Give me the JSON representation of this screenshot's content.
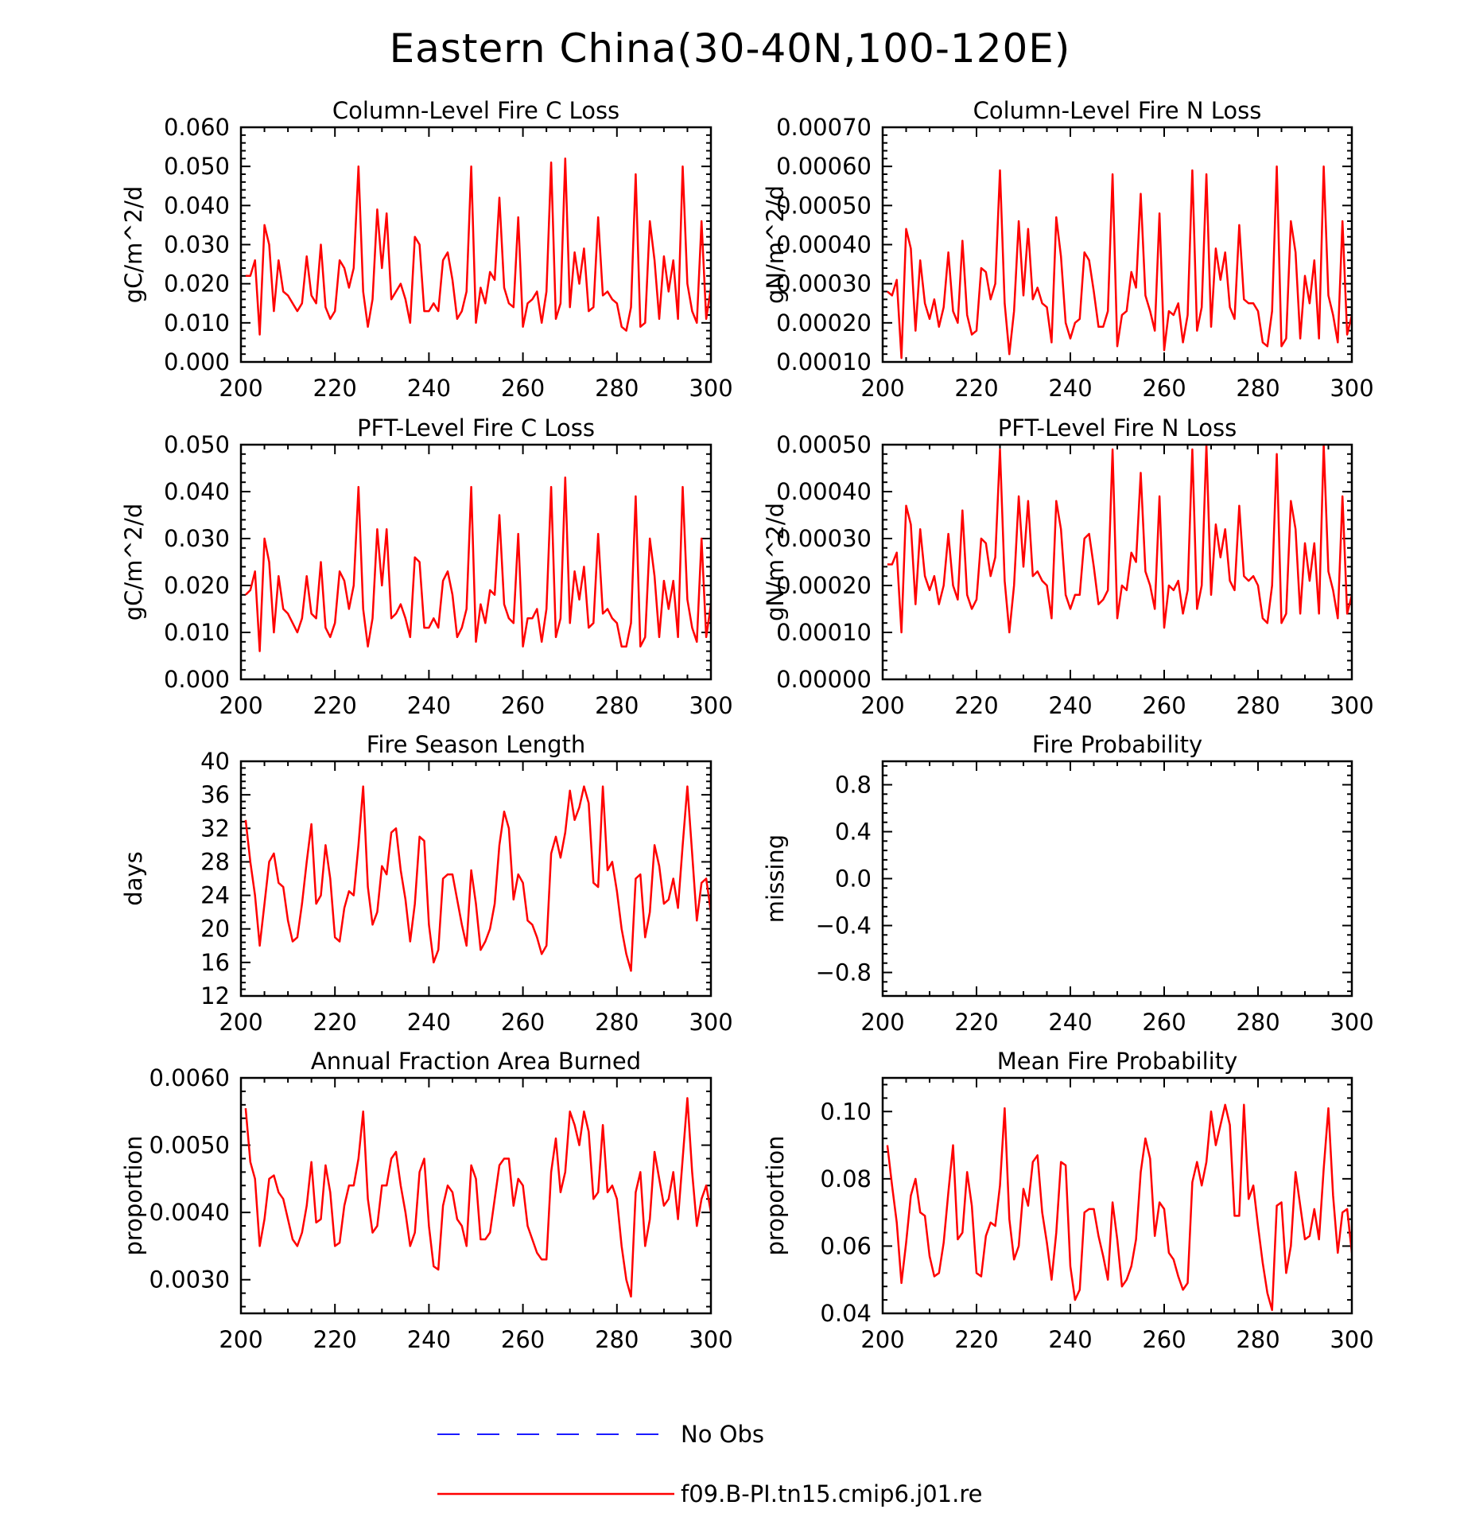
{
  "title": "Eastern China(30-40N,100-120E)",
  "legend": [
    {
      "label": "No Obs",
      "color": "#1a1aff",
      "dash": true
    },
    {
      "label": "f09.B-PI.tn15.cmip6.j01.re",
      "color": "#ff0000",
      "dash": false
    }
  ],
  "chart_data": [
    {
      "type": "line",
      "title": "Column-Level Fire C Loss",
      "ylabel": "gC/m^2/d",
      "xlim": [
        200,
        300
      ],
      "ylim": [
        0.0,
        0.06
      ],
      "xticks": [
        200,
        220,
        240,
        260,
        280,
        300
      ],
      "yticks": [
        0.0,
        0.01,
        0.02,
        0.03,
        0.04,
        0.05,
        0.06
      ],
      "ytick_labels": [
        "0.000",
        "0.010",
        "0.020",
        "0.030",
        "0.040",
        "0.050",
        "0.060"
      ],
      "series": [
        {
          "name": "f09.B-PI.tn15.cmip6.j01.re",
          "color": "#ff0000",
          "x_start": 201,
          "values": [
            0.022,
            0.022,
            0.026,
            0.007,
            0.035,
            0.03,
            0.013,
            0.026,
            0.018,
            0.017,
            0.015,
            0.013,
            0.015,
            0.027,
            0.017,
            0.015,
            0.03,
            0.014,
            0.011,
            0.013,
            0.026,
            0.024,
            0.019,
            0.024,
            0.05,
            0.018,
            0.009,
            0.016,
            0.039,
            0.024,
            0.038,
            0.016,
            0.018,
            0.02,
            0.016,
            0.01,
            0.032,
            0.03,
            0.013,
            0.013,
            0.015,
            0.013,
            0.026,
            0.028,
            0.021,
            0.011,
            0.013,
            0.018,
            0.05,
            0.01,
            0.019,
            0.015,
            0.023,
            0.021,
            0.042,
            0.019,
            0.015,
            0.014,
            0.037,
            0.009,
            0.015,
            0.016,
            0.018,
            0.01,
            0.018,
            0.051,
            0.011,
            0.015,
            0.052,
            0.014,
            0.028,
            0.02,
            0.029,
            0.013,
            0.014,
            0.037,
            0.017,
            0.018,
            0.016,
            0.015,
            0.009,
            0.008,
            0.014,
            0.048,
            0.009,
            0.01,
            0.036,
            0.026,
            0.011,
            0.027,
            0.018,
            0.026,
            0.011,
            0.05,
            0.02,
            0.013,
            0.01,
            0.036,
            0.011,
            0.019
          ]
        }
      ]
    },
    {
      "type": "line",
      "title": "Column-Level Fire N Loss",
      "ylabel": "gN/m^2/d",
      "xlim": [
        200,
        300
      ],
      "ylim": [
        0.0001,
        0.0007
      ],
      "xticks": [
        200,
        220,
        240,
        260,
        280,
        300
      ],
      "yticks": [
        0.0001,
        0.0002,
        0.0003,
        0.0004,
        0.0005,
        0.0006,
        0.0007
      ],
      "ytick_labels": [
        "0.00010",
        "0.00020",
        "0.00030",
        "0.00040",
        "0.00050",
        "0.00060",
        "0.00070"
      ],
      "series": [
        {
          "name": "f09.B-PI.tn15.cmip6.j01.re",
          "color": "#ff0000",
          "x_start": 201,
          "values": [
            0.00028,
            0.00027,
            0.00031,
            0.00011,
            0.00044,
            0.00039,
            0.00018,
            0.00036,
            0.00025,
            0.00021,
            0.00026,
            0.00019,
            0.00024,
            0.00038,
            0.00023,
            0.0002,
            0.00041,
            0.00022,
            0.00017,
            0.00018,
            0.00034,
            0.00033,
            0.00026,
            0.0003,
            0.00059,
            0.00025,
            0.00012,
            0.00023,
            0.00046,
            0.00027,
            0.00044,
            0.00026,
            0.00029,
            0.00025,
            0.00024,
            0.00015,
            0.00047,
            0.00037,
            0.0002,
            0.00016,
            0.0002,
            0.00021,
            0.00038,
            0.00036,
            0.00028,
            0.00019,
            0.00019,
            0.00023,
            0.00058,
            0.00014,
            0.00022,
            0.00023,
            0.00033,
            0.00029,
            0.00053,
            0.00027,
            0.00023,
            0.00018,
            0.00048,
            0.00013,
            0.00023,
            0.00022,
            0.00025,
            0.00015,
            0.00022,
            0.00059,
            0.00018,
            0.00024,
            0.00058,
            0.00019,
            0.00039,
            0.00031,
            0.00038,
            0.00024,
            0.00021,
            0.00045,
            0.00026,
            0.00025,
            0.00025,
            0.00023,
            0.00015,
            0.00014,
            0.00023,
            0.0006,
            0.00014,
            0.00016,
            0.00046,
            0.00038,
            0.00016,
            0.00032,
            0.00025,
            0.00036,
            0.00016,
            0.0006,
            0.00027,
            0.00022,
            0.00015,
            0.00046,
            0.00017,
            0.00022
          ]
        }
      ]
    },
    {
      "type": "line",
      "title": "PFT-Level Fire C Loss",
      "ylabel": "gC/m^2/d",
      "xlim": [
        200,
        300
      ],
      "ylim": [
        0.0,
        0.05
      ],
      "xticks": [
        200,
        220,
        240,
        260,
        280,
        300
      ],
      "yticks": [
        0.0,
        0.01,
        0.02,
        0.03,
        0.04,
        0.05
      ],
      "ytick_labels": [
        "0.000",
        "0.010",
        "0.020",
        "0.030",
        "0.040",
        "0.050"
      ],
      "series": [
        {
          "name": "f09.B-PI.tn15.cmip6.j01.re",
          "color": "#ff0000",
          "x_start": 201,
          "values": [
            0.018,
            0.019,
            0.023,
            0.006,
            0.03,
            0.025,
            0.01,
            0.022,
            0.015,
            0.014,
            0.012,
            0.01,
            0.013,
            0.022,
            0.014,
            0.013,
            0.025,
            0.011,
            0.009,
            0.012,
            0.023,
            0.021,
            0.015,
            0.02,
            0.041,
            0.015,
            0.007,
            0.013,
            0.032,
            0.02,
            0.032,
            0.013,
            0.014,
            0.016,
            0.013,
            0.009,
            0.026,
            0.025,
            0.011,
            0.011,
            0.013,
            0.011,
            0.021,
            0.023,
            0.018,
            0.009,
            0.011,
            0.015,
            0.041,
            0.008,
            0.016,
            0.012,
            0.019,
            0.018,
            0.035,
            0.016,
            0.013,
            0.012,
            0.031,
            0.007,
            0.013,
            0.013,
            0.015,
            0.008,
            0.015,
            0.041,
            0.009,
            0.013,
            0.043,
            0.012,
            0.023,
            0.017,
            0.024,
            0.011,
            0.012,
            0.031,
            0.014,
            0.015,
            0.013,
            0.012,
            0.007,
            0.007,
            0.012,
            0.039,
            0.007,
            0.009,
            0.03,
            0.022,
            0.009,
            0.021,
            0.015,
            0.021,
            0.009,
            0.041,
            0.017,
            0.011,
            0.008,
            0.03,
            0.009,
            0.016
          ]
        }
      ]
    },
    {
      "type": "line",
      "title": "PFT-Level Fire N Loss",
      "ylabel": "gN/m^2/d",
      "xlim": [
        200,
        300
      ],
      "ylim": [
        0.0,
        0.0005
      ],
      "xticks": [
        200,
        220,
        240,
        260,
        280,
        300
      ],
      "yticks": [
        0.0,
        0.0001,
        0.0002,
        0.0003,
        0.0004,
        0.0005
      ],
      "ytick_labels": [
        "0.00000",
        "0.00010",
        "0.00020",
        "0.00030",
        "0.00040",
        "0.00050"
      ],
      "series": [
        {
          "name": "f09.B-PI.tn15.cmip6.j01.re",
          "color": "#ff0000",
          "x_start": 201,
          "values": [
            0.000245,
            0.000245,
            0.00027,
            0.0001,
            0.00037,
            0.00033,
            0.00016,
            0.00032,
            0.00022,
            0.00019,
            0.00022,
            0.00016,
            0.0002,
            0.00031,
            0.0002,
            0.00017,
            0.00036,
            0.00018,
            0.00015,
            0.00017,
            0.0003,
            0.00029,
            0.00022,
            0.00026,
            0.00049,
            0.00021,
            0.0001,
            0.0002,
            0.00039,
            0.00024,
            0.00038,
            0.00022,
            0.00023,
            0.00021,
            0.0002,
            0.00013,
            0.00038,
            0.00032,
            0.00018,
            0.00015,
            0.00018,
            0.00018,
            0.0003,
            0.00031,
            0.00024,
            0.00016,
            0.00017,
            0.00019,
            0.00049,
            0.00013,
            0.0002,
            0.00019,
            0.00027,
            0.00025,
            0.00044,
            0.00023,
            0.0002,
            0.00015,
            0.00039,
            0.00011,
            0.0002,
            0.00019,
            0.00021,
            0.00014,
            0.00019,
            0.00049,
            0.00015,
            0.0002,
            0.0005,
            0.00018,
            0.00033,
            0.00026,
            0.00032,
            0.00021,
            0.00019,
            0.00037,
            0.00022,
            0.00021,
            0.00022,
            0.0002,
            0.00013,
            0.00012,
            0.0002,
            0.00048,
            0.00012,
            0.00014,
            0.00038,
            0.00032,
            0.00014,
            0.00029,
            0.00021,
            0.00029,
            0.00014,
            0.0005,
            0.00023,
            0.00019,
            0.00013,
            0.00039,
            0.00014,
            0.00018
          ]
        }
      ]
    },
    {
      "type": "line",
      "title": "Fire Season Length",
      "ylabel": "days",
      "xlim": [
        200,
        300
      ],
      "ylim": [
        12,
        40
      ],
      "xticks": [
        200,
        220,
        240,
        260,
        280,
        300
      ],
      "yticks": [
        12,
        16,
        20,
        24,
        28,
        32,
        36,
        40
      ],
      "ytick_labels": [
        "12",
        "16",
        "20",
        "24",
        "28",
        "32",
        "36",
        "40"
      ],
      "series": [
        {
          "name": "f09.B-PI.tn15.cmip6.j01.re",
          "color": "#ff0000",
          "x_start": 201,
          "values": [
            33,
            28,
            24,
            18,
            23,
            28,
            29,
            25.5,
            25,
            21,
            18.5,
            19,
            23,
            28,
            32.5,
            23,
            24,
            30,
            26,
            19,
            18.5,
            22.5,
            24.5,
            24,
            30,
            37,
            25,
            20.5,
            22,
            27.5,
            26.5,
            31.5,
            32,
            27,
            23.5,
            18.5,
            23,
            31,
            30.5,
            20.5,
            16,
            17.5,
            26,
            26.5,
            26.5,
            23.5,
            20.5,
            18,
            27,
            23,
            17.5,
            18.5,
            20,
            23,
            30,
            34,
            32,
            23.5,
            26.5,
            25.5,
            21,
            20.5,
            19,
            17,
            18,
            29,
            31,
            28.5,
            31.5,
            36.5,
            33,
            34.5,
            37,
            35,
            25.5,
            25,
            37,
            27,
            28,
            24.5,
            20,
            17,
            15,
            26,
            26.5,
            19,
            22,
            30,
            27.5,
            23,
            23.5,
            26,
            22.5,
            30,
            37,
            29,
            21,
            25.5,
            26,
            22
          ]
        }
      ]
    },
    {
      "type": "line",
      "title": "Fire Probability",
      "ylabel": "missing",
      "xlim": [
        200,
        300
      ],
      "ylim": [
        -1.0,
        1.0
      ],
      "xticks": [
        200,
        220,
        240,
        260,
        280,
        300
      ],
      "yticks": [
        -0.8,
        -0.4,
        0.0,
        0.4,
        0.8
      ],
      "ytick_labels": [
        "−0.8",
        "−0.4",
        "0.0",
        "0.4",
        "0.8"
      ],
      "series": []
    },
    {
      "type": "line",
      "title": "Annual Fraction Area Burned",
      "ylabel": "proportion",
      "xlim": [
        200,
        300
      ],
      "ylim": [
        0.0025,
        0.006
      ],
      "xticks": [
        200,
        220,
        240,
        260,
        280,
        300
      ],
      "yticks": [
        0.003,
        0.004,
        0.005,
        0.006
      ],
      "ytick_labels": [
        "0.0030",
        "0.0040",
        "0.0050",
        "0.0060"
      ],
      "series": [
        {
          "name": "f09.B-PI.tn15.cmip6.j01.re",
          "color": "#ff0000",
          "x_start": 201,
          "values": [
            0.00555,
            0.00475,
            0.0045,
            0.0035,
            0.0039,
            0.0045,
            0.00455,
            0.0043,
            0.0042,
            0.0039,
            0.0036,
            0.0035,
            0.0037,
            0.0041,
            0.00475,
            0.00385,
            0.0039,
            0.0047,
            0.0043,
            0.0035,
            0.00355,
            0.0041,
            0.0044,
            0.0044,
            0.0048,
            0.0055,
            0.0042,
            0.0037,
            0.0038,
            0.0044,
            0.0044,
            0.0048,
            0.0049,
            0.0044,
            0.004,
            0.0035,
            0.0037,
            0.0046,
            0.0048,
            0.0038,
            0.0032,
            0.00315,
            0.0041,
            0.0044,
            0.0043,
            0.0039,
            0.0038,
            0.0035,
            0.0047,
            0.0045,
            0.0036,
            0.0036,
            0.0037,
            0.0042,
            0.0047,
            0.0048,
            0.0048,
            0.0041,
            0.0045,
            0.0044,
            0.0038,
            0.0036,
            0.0034,
            0.0033,
            0.0033,
            0.0046,
            0.0051,
            0.0043,
            0.0046,
            0.0055,
            0.0053,
            0.005,
            0.0055,
            0.0052,
            0.0042,
            0.0043,
            0.0053,
            0.0043,
            0.0044,
            0.0042,
            0.0035,
            0.003,
            0.00275,
            0.0043,
            0.0046,
            0.0035,
            0.0039,
            0.0049,
            0.0045,
            0.0041,
            0.0042,
            0.0046,
            0.0039,
            0.0048,
            0.0057,
            0.0046,
            0.0038,
            0.0042,
            0.0044,
            0.004
          ]
        }
      ]
    },
    {
      "type": "line",
      "title": "Mean Fire Probability",
      "ylabel": "proportion",
      "xlim": [
        200,
        300
      ],
      "ylim": [
        0.04,
        0.11
      ],
      "xticks": [
        200,
        220,
        240,
        260,
        280,
        300
      ],
      "yticks": [
        0.04,
        0.06,
        0.08,
        0.1
      ],
      "ytick_labels": [
        "0.04",
        "0.06",
        "0.08",
        "0.10"
      ],
      "series": [
        {
          "name": "f09.B-PI.tn15.cmip6.j01.re",
          "color": "#ff0000",
          "x_start": 201,
          "values": [
            0.09,
            0.078,
            0.067,
            0.049,
            0.061,
            0.075,
            0.08,
            0.07,
            0.069,
            0.057,
            0.051,
            0.052,
            0.061,
            0.076,
            0.09,
            0.062,
            0.064,
            0.082,
            0.072,
            0.052,
            0.051,
            0.063,
            0.067,
            0.066,
            0.078,
            0.101,
            0.068,
            0.056,
            0.06,
            0.077,
            0.072,
            0.085,
            0.087,
            0.07,
            0.061,
            0.05,
            0.064,
            0.085,
            0.084,
            0.054,
            0.044,
            0.047,
            0.07,
            0.071,
            0.071,
            0.063,
            0.057,
            0.05,
            0.073,
            0.062,
            0.048,
            0.05,
            0.054,
            0.062,
            0.082,
            0.092,
            0.086,
            0.063,
            0.073,
            0.071,
            0.058,
            0.056,
            0.051,
            0.047,
            0.049,
            0.079,
            0.085,
            0.078,
            0.085,
            0.1,
            0.09,
            0.096,
            0.102,
            0.096,
            0.069,
            0.069,
            0.102,
            0.074,
            0.078,
            0.066,
            0.055,
            0.046,
            0.041,
            0.072,
            0.073,
            0.052,
            0.06,
            0.082,
            0.072,
            0.062,
            0.063,
            0.071,
            0.062,
            0.083,
            0.101,
            0.075,
            0.058,
            0.07,
            0.071,
            0.058
          ]
        }
      ]
    }
  ]
}
